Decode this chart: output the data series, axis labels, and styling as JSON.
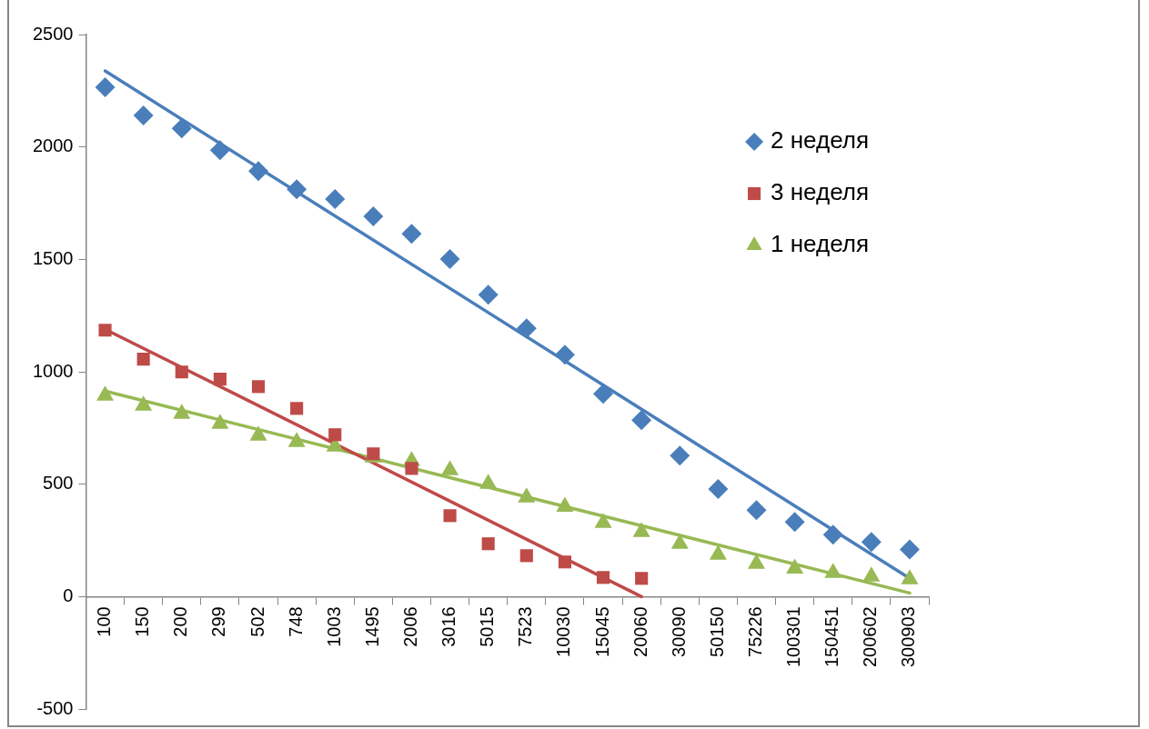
{
  "chart_data": {
    "type": "scatter",
    "categories": [
      "100",
      "150",
      "200",
      "299",
      "502",
      "748",
      "1003",
      "1495",
      "2006",
      "3016",
      "5015",
      "7523",
      "10030",
      "15045",
      "20060",
      "30090",
      "50150",
      "75226",
      "100301",
      "150451",
      "200602",
      "300903"
    ],
    "ylim": [
      -500,
      2500
    ],
    "yticks": [
      -500,
      0,
      500,
      1000,
      1500,
      2000,
      2500
    ],
    "grid": false,
    "legend": "top right",
    "series": [
      {
        "name": "2 неделя",
        "color": "#4a7ebb",
        "marker": "diamond",
        "values": [
          2265,
          2140,
          2083,
          1986,
          1893,
          1812,
          1768,
          1691,
          1614,
          1501,
          1343,
          1193,
          1076,
          902,
          785,
          627,
          478,
          384,
          332,
          275,
          243,
          210
        ]
      },
      {
        "name": "3 неделя",
        "color": "#be4b48",
        "marker": "square",
        "values": [
          1185,
          1056,
          999,
          967,
          934,
          837,
          720,
          635,
          570,
          360,
          235,
          182,
          154,
          85,
          81,
          null,
          null,
          null,
          null,
          null,
          null,
          null
        ]
      },
      {
        "name": "1 неделя",
        "color": "#98b954",
        "marker": "triangle",
        "values": [
          894,
          849,
          813,
          769,
          716,
          688,
          667,
          619,
          603,
          562,
          502,
          441,
          400,
          328,
          287,
          235,
          186,
          146,
          125,
          105,
          89,
          77
        ]
      },
      {
        "type": "line",
        "color": "#4a7ebb",
        "marker": "none",
        "x": [
          "100",
          "300903"
        ],
        "values": [
          2338,
          81
        ]
      },
      {
        "type": "line",
        "color": "#be4b48",
        "marker": "none",
        "x": [
          "100",
          "20060"
        ],
        "values": [
          1189,
          0
        ]
      },
      {
        "type": "line",
        "color": "#98b954",
        "marker": "none",
        "x": [
          "100",
          "300903"
        ],
        "values": [
          914,
          16
        ]
      }
    ]
  }
}
